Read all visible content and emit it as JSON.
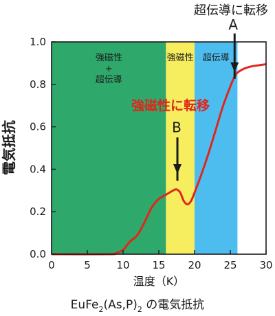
{
  "chart_data": {
    "type": "line",
    "title": "",
    "caption": {
      "pre": "EuFe",
      "sub1": "2",
      "mid": "(As,P)",
      "sub2": "2",
      "post": " の電気抵抗"
    },
    "xlabel": "温度（K）",
    "ylabel": "電気抵抗",
    "xlim": [
      0,
      30
    ],
    "ylim": [
      0,
      1.0
    ],
    "xticks": [
      0,
      5,
      10,
      15,
      20,
      25,
      30
    ],
    "yticks": [
      0.0,
      0.2,
      0.4,
      0.6,
      0.8,
      1.0
    ],
    "xtick_labels": [
      "0",
      "5",
      "10",
      "15",
      "20",
      "25",
      "30"
    ],
    "ytick_labels": [
      "0.0",
      "0.2",
      "0.4",
      "0.6",
      "0.8",
      "1.0"
    ],
    "grid": false,
    "regions": [
      {
        "x0": 0,
        "x1": 16,
        "color": "#2fa86b",
        "label_lines": [
          "強磁性",
          "+",
          "超伝導"
        ]
      },
      {
        "x0": 16,
        "x1": 20,
        "color": "#f6ee5e",
        "label_lines": [
          "強磁性"
        ]
      },
      {
        "x0": 20,
        "x1": 26,
        "color": "#4dbdf0",
        "label_lines": [
          "超伝導"
        ]
      }
    ],
    "series": [
      {
        "color": "#e0261c",
        "x": [
          0,
          8,
          9,
          10,
          10.5,
          11,
          12,
          13,
          14,
          15,
          16,
          17,
          17.5,
          18,
          18.5,
          19,
          19.5,
          20,
          21,
          22,
          23,
          24,
          25,
          25.5,
          26,
          27,
          28,
          29,
          30
        ],
        "y": [
          0,
          0,
          0.005,
          0.02,
          0.04,
          0.06,
          0.09,
          0.15,
          0.22,
          0.26,
          0.28,
          0.3,
          0.305,
          0.29,
          0.25,
          0.235,
          0.25,
          0.29,
          0.38,
          0.48,
          0.59,
          0.7,
          0.79,
          0.83,
          0.855,
          0.875,
          0.885,
          0.89,
          0.895
        ]
      }
    ],
    "annotations": [
      {
        "text": "強磁性に転移",
        "color": "#e0261c",
        "arrow_x": 17.6,
        "arrow_from": 0.55,
        "arrow_to": 0.385
      },
      {
        "text": "A",
        "heading": "超伝導に転移",
        "color": "#1a1a1a",
        "arrow_x": 25.6,
        "arrow_from": 1.04,
        "arrow_to": 0.865
      },
      {
        "text": "B",
        "color": "#1a1a1a"
      }
    ]
  }
}
